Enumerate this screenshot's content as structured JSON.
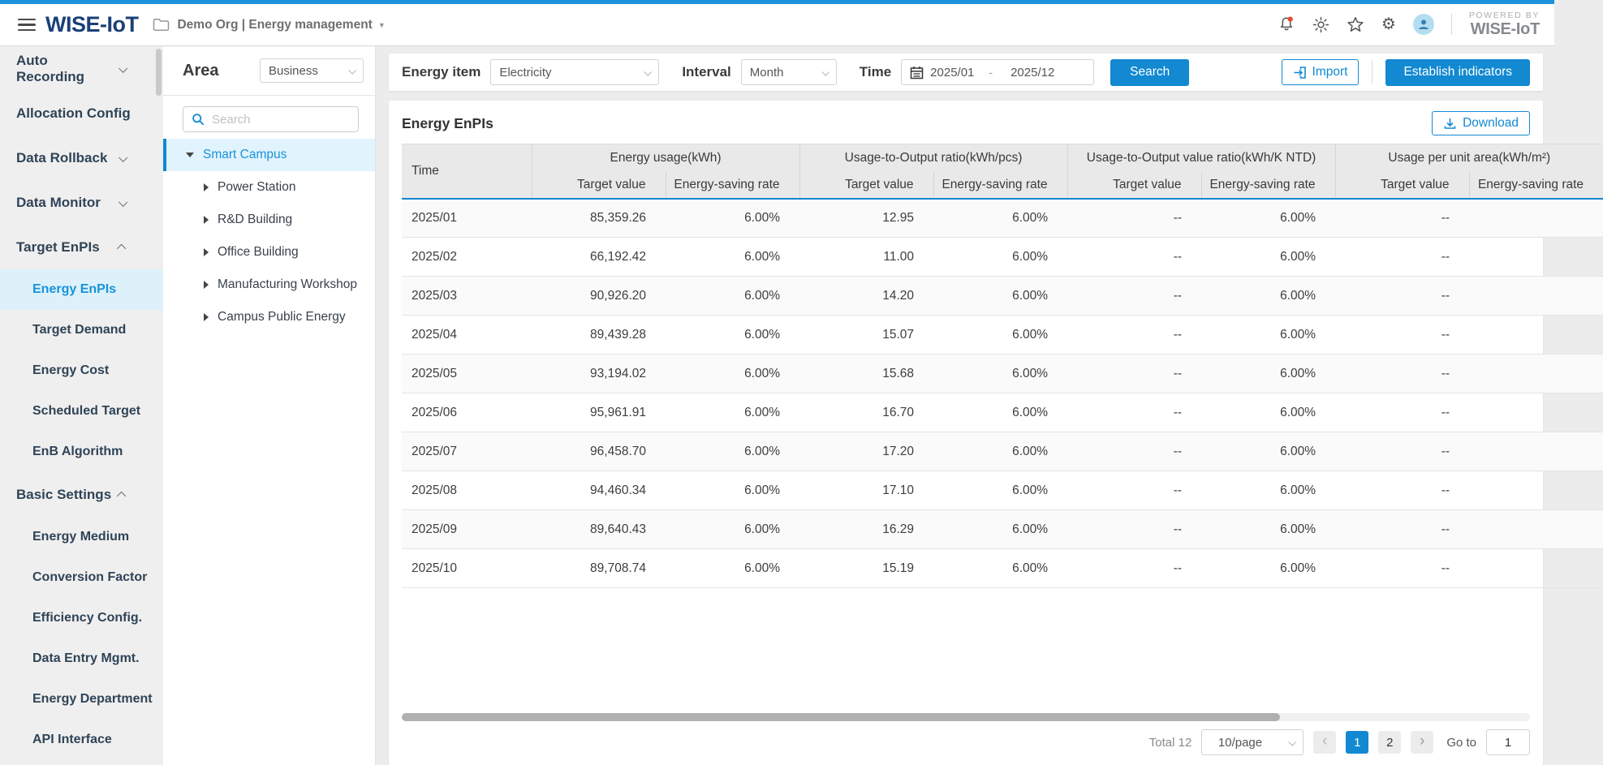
{
  "header": {
    "logo": "WISE-IoT",
    "org_label": "Demo Org | Energy management",
    "powered_by": "POWERED BY",
    "powered_brand": "WISE-IoT"
  },
  "sidebar": {
    "items": [
      {
        "label": "Auto Recording",
        "level": "top",
        "chevron": "down",
        "active": false
      },
      {
        "label": "Allocation Config",
        "level": "top",
        "chevron": null,
        "active": false
      },
      {
        "label": "Data Rollback",
        "level": "top",
        "chevron": "down",
        "active": false
      },
      {
        "label": "Data Monitor",
        "level": "top",
        "chevron": "down",
        "active": false
      },
      {
        "label": "Target EnPIs",
        "level": "top",
        "chevron": "up",
        "active": false
      },
      {
        "label": "Energy EnPIs",
        "level": "sub",
        "chevron": null,
        "active": true
      },
      {
        "label": "Target Demand",
        "level": "sub",
        "chevron": null,
        "active": false
      },
      {
        "label": "Energy Cost",
        "level": "sub",
        "chevron": null,
        "active": false
      },
      {
        "label": "Scheduled Target",
        "level": "sub",
        "chevron": null,
        "active": false
      },
      {
        "label": "EnB Algorithm",
        "level": "sub",
        "chevron": null,
        "active": false
      },
      {
        "label": "Basic Settings",
        "level": "top",
        "chevron": "up",
        "active": false
      },
      {
        "label": "Energy Medium",
        "level": "sub",
        "chevron": null,
        "active": false
      },
      {
        "label": "Conversion Factor",
        "level": "sub",
        "chevron": null,
        "active": false
      },
      {
        "label": "Efficiency Config.",
        "level": "sub",
        "chevron": null,
        "active": false
      },
      {
        "label": "Data Entry Mgmt.",
        "level": "sub",
        "chevron": null,
        "active": false
      },
      {
        "label": "Energy Department",
        "level": "sub",
        "chevron": null,
        "active": false
      },
      {
        "label": "API Interface",
        "level": "sub",
        "chevron": null,
        "active": false
      }
    ]
  },
  "area_panel": {
    "title": "Area",
    "scope_value": "Business",
    "search_placeholder": "Search",
    "tree": [
      {
        "label": "Smart Campus",
        "selected": true,
        "expanded": true,
        "child": false
      },
      {
        "label": "Power Station",
        "selected": false,
        "expanded": false,
        "child": true
      },
      {
        "label": "R&D Building",
        "selected": false,
        "expanded": false,
        "child": true
      },
      {
        "label": "Office Building",
        "selected": false,
        "expanded": false,
        "child": true
      },
      {
        "label": "Manufacturing Workshop",
        "selected": false,
        "expanded": false,
        "child": true
      },
      {
        "label": "Campus Public Energy",
        "selected": false,
        "expanded": false,
        "child": true
      }
    ]
  },
  "toolbar": {
    "energy_item_label": "Energy item",
    "energy_item_value": "Electricity",
    "interval_label": "Interval",
    "interval_value": "Month",
    "time_label": "Time",
    "time_from": "2025/01",
    "time_to": "2025/12",
    "search_label": "Search",
    "import_label": "Import",
    "establish_label": "Establish indicators"
  },
  "table": {
    "title": "Energy EnPIs",
    "download_label": "Download",
    "time_header": "Time",
    "groups": [
      {
        "label": "Energy usage(kWh)",
        "subs": [
          "Target value",
          "Energy-saving rate"
        ]
      },
      {
        "label": "Usage-to-Output ratio(kWh/pcs)",
        "subs": [
          "Target value",
          "Energy-saving rate"
        ]
      },
      {
        "label": "Usage-to-Output value ratio(kWh/K NTD)",
        "subs": [
          "Target value",
          "Energy-saving rate"
        ]
      },
      {
        "label": "Usage per unit area(kWh/m²)",
        "subs": [
          "Target value",
          "Energy-saving rate"
        ]
      }
    ],
    "rows": [
      {
        "time": "2025/01",
        "values": [
          "85,359.26",
          "6.00%",
          "12.95",
          "6.00%",
          "--",
          "6.00%",
          "--",
          ""
        ]
      },
      {
        "time": "2025/02",
        "values": [
          "66,192.42",
          "6.00%",
          "11.00",
          "6.00%",
          "--",
          "6.00%",
          "--",
          ""
        ]
      },
      {
        "time": "2025/03",
        "values": [
          "90,926.20",
          "6.00%",
          "14.20",
          "6.00%",
          "--",
          "6.00%",
          "--",
          ""
        ]
      },
      {
        "time": "2025/04",
        "values": [
          "89,439.28",
          "6.00%",
          "15.07",
          "6.00%",
          "--",
          "6.00%",
          "--",
          ""
        ]
      },
      {
        "time": "2025/05",
        "values": [
          "93,194.02",
          "6.00%",
          "15.68",
          "6.00%",
          "--",
          "6.00%",
          "--",
          ""
        ]
      },
      {
        "time": "2025/06",
        "values": [
          "95,961.91",
          "6.00%",
          "16.70",
          "6.00%",
          "--",
          "6.00%",
          "--",
          ""
        ]
      },
      {
        "time": "2025/07",
        "values": [
          "96,458.70",
          "6.00%",
          "17.20",
          "6.00%",
          "--",
          "6.00%",
          "--",
          ""
        ]
      },
      {
        "time": "2025/08",
        "values": [
          "94,460.34",
          "6.00%",
          "17.10",
          "6.00%",
          "--",
          "6.00%",
          "--",
          ""
        ]
      },
      {
        "time": "2025/09",
        "values": [
          "89,640.43",
          "6.00%",
          "16.29",
          "6.00%",
          "--",
          "6.00%",
          "--",
          ""
        ]
      },
      {
        "time": "2025/10",
        "values": [
          "89,708.74",
          "6.00%",
          "15.19",
          "6.00%",
          "--",
          "6.00%",
          "--",
          ""
        ]
      }
    ]
  },
  "pagination": {
    "total_label": "Total 12",
    "page_size": "10/page",
    "pages": [
      {
        "label": "1",
        "active": true
      },
      {
        "label": "2",
        "active": false
      }
    ],
    "prev_glyph": "‹",
    "next_glyph": "›",
    "goto_label": "Go to",
    "goto_value": "1"
  },
  "colors": {
    "accent_blue": "#1289d1",
    "top_strip_blue": "#1b93dd",
    "link_blue": "#1793d8",
    "logo_navy": "#1a4077",
    "sidebar_bg": "#f0efef",
    "selected_item_bg": "#ddf1fb",
    "table_header_bg": "#e9e9e9"
  }
}
